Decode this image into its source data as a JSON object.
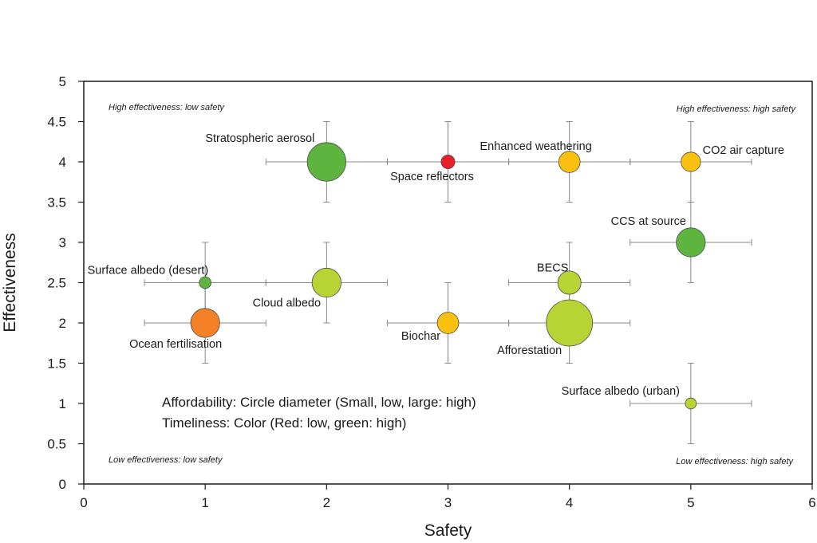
{
  "chart_data": {
    "type": "scatter",
    "title": "",
    "xlabel": "Safety",
    "ylabel": "Effectiveness",
    "xlim": [
      0,
      6
    ],
    "ylim": [
      0,
      5
    ],
    "x_ticks": [
      "0",
      "1",
      "2",
      "3",
      "4",
      "5",
      "6"
    ],
    "y_ticks": [
      "0",
      "0.5",
      "1",
      "1.5",
      "2",
      "2.5",
      "3",
      "3.5",
      "4",
      "4.5",
      "5"
    ],
    "grid": false,
    "points": [
      {
        "label": "Stratospheric aerosol",
        "x": 2,
        "y": 4,
        "x_err": 0.5,
        "y_err": 0.5,
        "affordability": 0.8,
        "color": "#5db53f"
      },
      {
        "label": "Space reflectors",
        "x": 3,
        "y": 4,
        "x_err": 0.5,
        "y_err": 0.5,
        "affordability": 0.15,
        "color": "#e8202a"
      },
      {
        "label": "Enhanced weathering",
        "x": 4,
        "y": 4,
        "x_err": 0.5,
        "y_err": 0.5,
        "affordability": 0.35,
        "color": "#fcc010"
      },
      {
        "label": "CO2 air capture",
        "x": 5,
        "y": 4,
        "x_err": 0.5,
        "y_err": 0.5,
        "affordability": 0.3,
        "color": "#fcc010"
      },
      {
        "label": "CCS at source",
        "x": 5,
        "y": 3,
        "x_err": 0.5,
        "y_err": 0.5,
        "affordability": 0.55,
        "color": "#5db53f"
      },
      {
        "label": "Surface albedo (desert)",
        "x": 1,
        "y": 2.5,
        "x_err": 0.5,
        "y_err": 0.5,
        "affordability": 0.1,
        "color": "#5db53f"
      },
      {
        "label": "Cloud albedo",
        "x": 2,
        "y": 2.5,
        "x_err": 0.5,
        "y_err": 0.5,
        "affordability": 0.55,
        "color": "#b7d334"
      },
      {
        "label": "BECS",
        "x": 4,
        "y": 2.5,
        "x_err": 0.5,
        "y_err": 0.5,
        "affordability": 0.4,
        "color": "#b7d334"
      },
      {
        "label": "Ocean fertilisation",
        "x": 1,
        "y": 2,
        "x_err": 0.5,
        "y_err": 0.5,
        "affordability": 0.55,
        "color": "#f58025"
      },
      {
        "label": "Biochar",
        "x": 3,
        "y": 2,
        "x_err": 0.5,
        "y_err": 0.5,
        "affordability": 0.35,
        "color": "#fcc010"
      },
      {
        "label": "Afforestation",
        "x": 4,
        "y": 2,
        "x_err": 0.5,
        "y_err": 0.5,
        "affordability": 1.0,
        "color": "#b7d334"
      },
      {
        "label": "Surface albedo (urban)",
        "x": 5,
        "y": 1,
        "x_err": 0.5,
        "y_err": 0.5,
        "affordability": 0.08,
        "color": "#b7d334"
      }
    ],
    "annotations": {
      "top_left": "High effectiveness: low safety",
      "top_right": "High effectiveness: high safety",
      "bottom_left": "Low effectiveness: low safety",
      "bottom_right": "Low effectiveness: high safety",
      "legend_line_1": "Affordability: Circle diameter (Small, low, large: high)",
      "legend_line_2": "Timeliness: Color (Red: low, green: high)"
    }
  }
}
